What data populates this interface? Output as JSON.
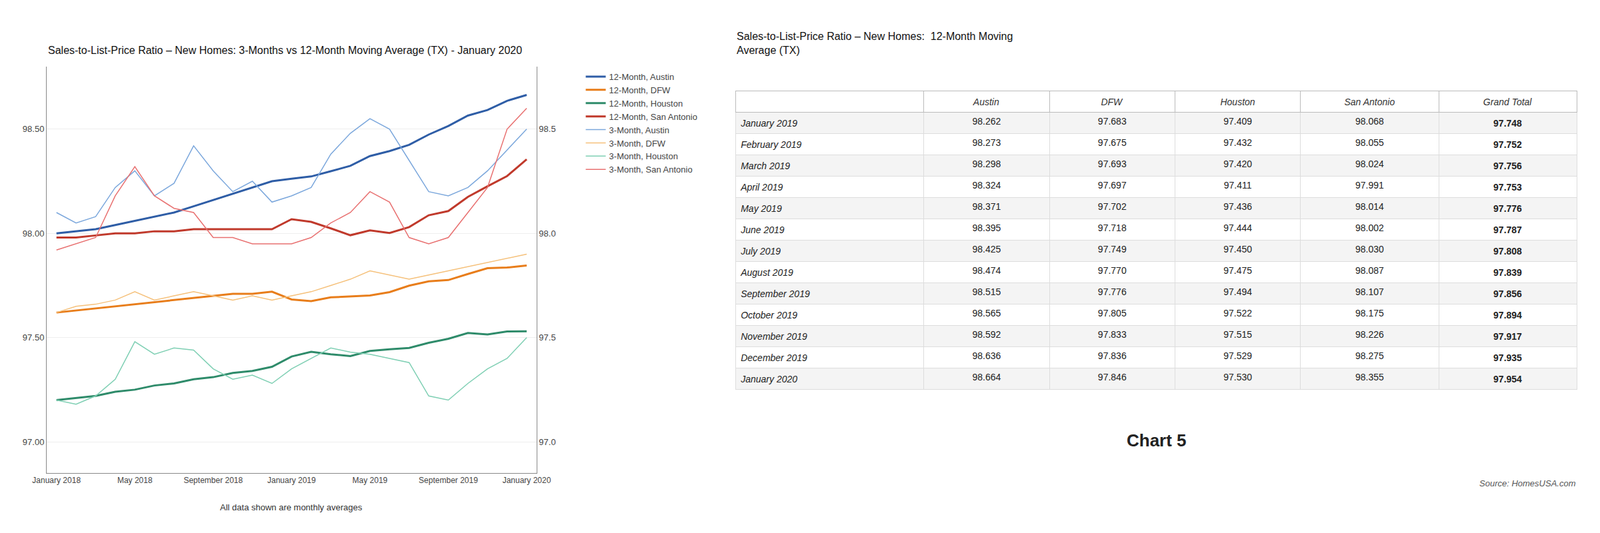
{
  "chart_data": [
    {
      "type": "line",
      "title": "Sales-to-List-Price Ratio – New Homes: 3-Months vs 12-Month Moving Average (TX) - January 2020",
      "subtitle": "All data shown are monthly averages",
      "categories": [
        "January 2018",
        null,
        null,
        null,
        "May 2018",
        null,
        null,
        null,
        "September 2018",
        null,
        null,
        null,
        "January 2019",
        null,
        null,
        null,
        "May 2019",
        null,
        null,
        null,
        "September 2019",
        null,
        null,
        null,
        "January 2020"
      ],
      "series": [
        {
          "name": "12-Month, Austin",
          "color": "#2E5DA6",
          "line_style": "thick",
          "values": [
            98.0,
            98.01,
            98.02,
            98.04,
            98.06,
            98.08,
            98.1,
            98.13,
            98.16,
            98.19,
            98.22,
            98.25,
            98.262,
            98.273,
            98.298,
            98.324,
            98.371,
            98.395,
            98.425,
            98.474,
            98.515,
            98.565,
            98.592,
            98.636,
            98.664
          ]
        },
        {
          "name": "12-Month, DFW",
          "color": "#E87D1A",
          "line_style": "thick",
          "values": [
            97.62,
            97.63,
            97.64,
            97.65,
            97.66,
            97.67,
            97.68,
            97.69,
            97.7,
            97.71,
            97.71,
            97.72,
            97.683,
            97.675,
            97.693,
            97.697,
            97.702,
            97.718,
            97.749,
            97.77,
            97.776,
            97.805,
            97.833,
            97.836,
            97.846
          ]
        },
        {
          "name": "12-Month, Houston",
          "color": "#2E8B6A",
          "line_style": "thick",
          "values": [
            97.2,
            97.21,
            97.22,
            97.24,
            97.25,
            97.27,
            97.28,
            97.3,
            97.31,
            97.33,
            97.34,
            97.36,
            97.409,
            97.432,
            97.42,
            97.411,
            97.436,
            97.444,
            97.45,
            97.475,
            97.494,
            97.522,
            97.515,
            97.529,
            97.53
          ]
        },
        {
          "name": "12-Month, San Antonio",
          "color": "#C0392B",
          "line_style": "thick",
          "values": [
            97.98,
            97.98,
            97.99,
            98.0,
            98.0,
            98.01,
            98.01,
            98.02,
            98.02,
            98.02,
            98.02,
            98.02,
            98.068,
            98.055,
            98.024,
            97.991,
            98.014,
            98.002,
            98.03,
            98.087,
            98.107,
            98.175,
            98.226,
            98.275,
            98.355
          ]
        },
        {
          "name": "3-Month, Austin",
          "color": "#7BA7DC",
          "line_style": "thin",
          "values": [
            98.1,
            98.05,
            98.08,
            98.22,
            98.3,
            98.18,
            98.24,
            98.42,
            98.3,
            98.2,
            98.25,
            98.15,
            98.18,
            98.22,
            98.38,
            98.48,
            98.55,
            98.5,
            98.35,
            98.2,
            98.18,
            98.22,
            98.3,
            98.4,
            98.5
          ]
        },
        {
          "name": "3-Month, DFW",
          "color": "#F5C07A",
          "line_style": "thin",
          "values": [
            97.62,
            97.65,
            97.66,
            97.68,
            97.72,
            97.68,
            97.7,
            97.72,
            97.7,
            97.68,
            97.7,
            97.68,
            97.7,
            97.72,
            97.75,
            97.78,
            97.82,
            97.8,
            97.78,
            97.8,
            97.82,
            97.84,
            97.86,
            97.88,
            97.9
          ]
        },
        {
          "name": "3-Month, Houston",
          "color": "#7ECFB3",
          "line_style": "thin",
          "values": [
            97.2,
            97.18,
            97.22,
            97.3,
            97.48,
            97.42,
            97.45,
            97.44,
            97.35,
            97.3,
            97.32,
            97.28,
            97.35,
            97.4,
            97.45,
            97.43,
            97.42,
            97.4,
            97.38,
            97.22,
            97.2,
            97.28,
            97.35,
            97.4,
            97.5
          ]
        },
        {
          "name": "3-Month, San Antonio",
          "color": "#E87070",
          "line_style": "thin",
          "values": [
            97.92,
            97.95,
            97.98,
            98.18,
            98.32,
            98.18,
            98.12,
            98.1,
            97.98,
            97.98,
            97.95,
            97.95,
            97.95,
            97.98,
            98.05,
            98.1,
            98.2,
            98.15,
            97.98,
            97.95,
            97.98,
            98.1,
            98.22,
            98.5,
            98.6
          ]
        }
      ],
      "ylim": [
        96.85,
        98.8
      ],
      "yticks": [
        {
          "value": 97,
          "label": "97.00"
        },
        {
          "value": 97.5,
          "label": "97.50"
        },
        {
          "value": 98,
          "label": "98.00"
        },
        {
          "value": 98.5,
          "label": "98.50"
        }
      ],
      "y2lim": [
        96.85,
        98.8
      ],
      "y2ticks": [
        {
          "value": 97,
          "label": "97.0"
        },
        {
          "value": 97.5,
          "label": "97.5"
        },
        {
          "value": 98,
          "label": "98.0"
        },
        {
          "value": 98.5,
          "label": "98.5"
        }
      ],
      "grid": true,
      "legend": "right",
      "annotations": [
        "Chart 5",
        "Source: HomesUSA.com"
      ]
    },
    {
      "type": "table",
      "title": "Sales-to-List-Price Ratio – New Homes:  12-Month Moving\nAverage (TX)",
      "columns": [
        null,
        "Austin",
        "DFW",
        "Houston",
        "San Antonio",
        "Grand Total"
      ],
      "rows": [
        [
          "January 2019",
          "98.262",
          "97.683",
          "97.409",
          "98.068",
          "97.748"
        ],
        [
          "February 2019",
          "98.273",
          "97.675",
          "97.432",
          "98.055",
          "97.752"
        ],
        [
          "March 2019",
          "98.298",
          "97.693",
          "97.420",
          "98.024",
          "97.756"
        ],
        [
          "April 2019",
          "98.324",
          "97.697",
          "97.411",
          "97.991",
          "97.753"
        ],
        [
          "May 2019",
          "98.371",
          "97.702",
          "97.436",
          "98.014",
          "97.776"
        ],
        [
          "June 2019",
          "98.395",
          "97.718",
          "97.444",
          "98.002",
          "97.787"
        ],
        [
          "July 2019",
          "98.425",
          "97.749",
          "97.450",
          "98.030",
          "97.808"
        ],
        [
          "August 2019",
          "98.474",
          "97.770",
          "97.475",
          "98.087",
          "97.839"
        ],
        [
          "September 2019",
          "98.515",
          "97.776",
          "97.494",
          "98.107",
          "97.856"
        ],
        [
          "October 2019",
          "98.565",
          "97.805",
          "97.522",
          "98.175",
          "97.894"
        ],
        [
          "November 2019",
          "98.592",
          "97.833",
          "97.515",
          "98.226",
          "97.917"
        ],
        [
          "December 2019",
          "98.636",
          "97.836",
          "97.529",
          "98.275",
          "97.935"
        ],
        [
          "January 2020",
          "98.664",
          "97.846",
          "97.530",
          "98.355",
          "97.954"
        ]
      ]
    }
  ]
}
